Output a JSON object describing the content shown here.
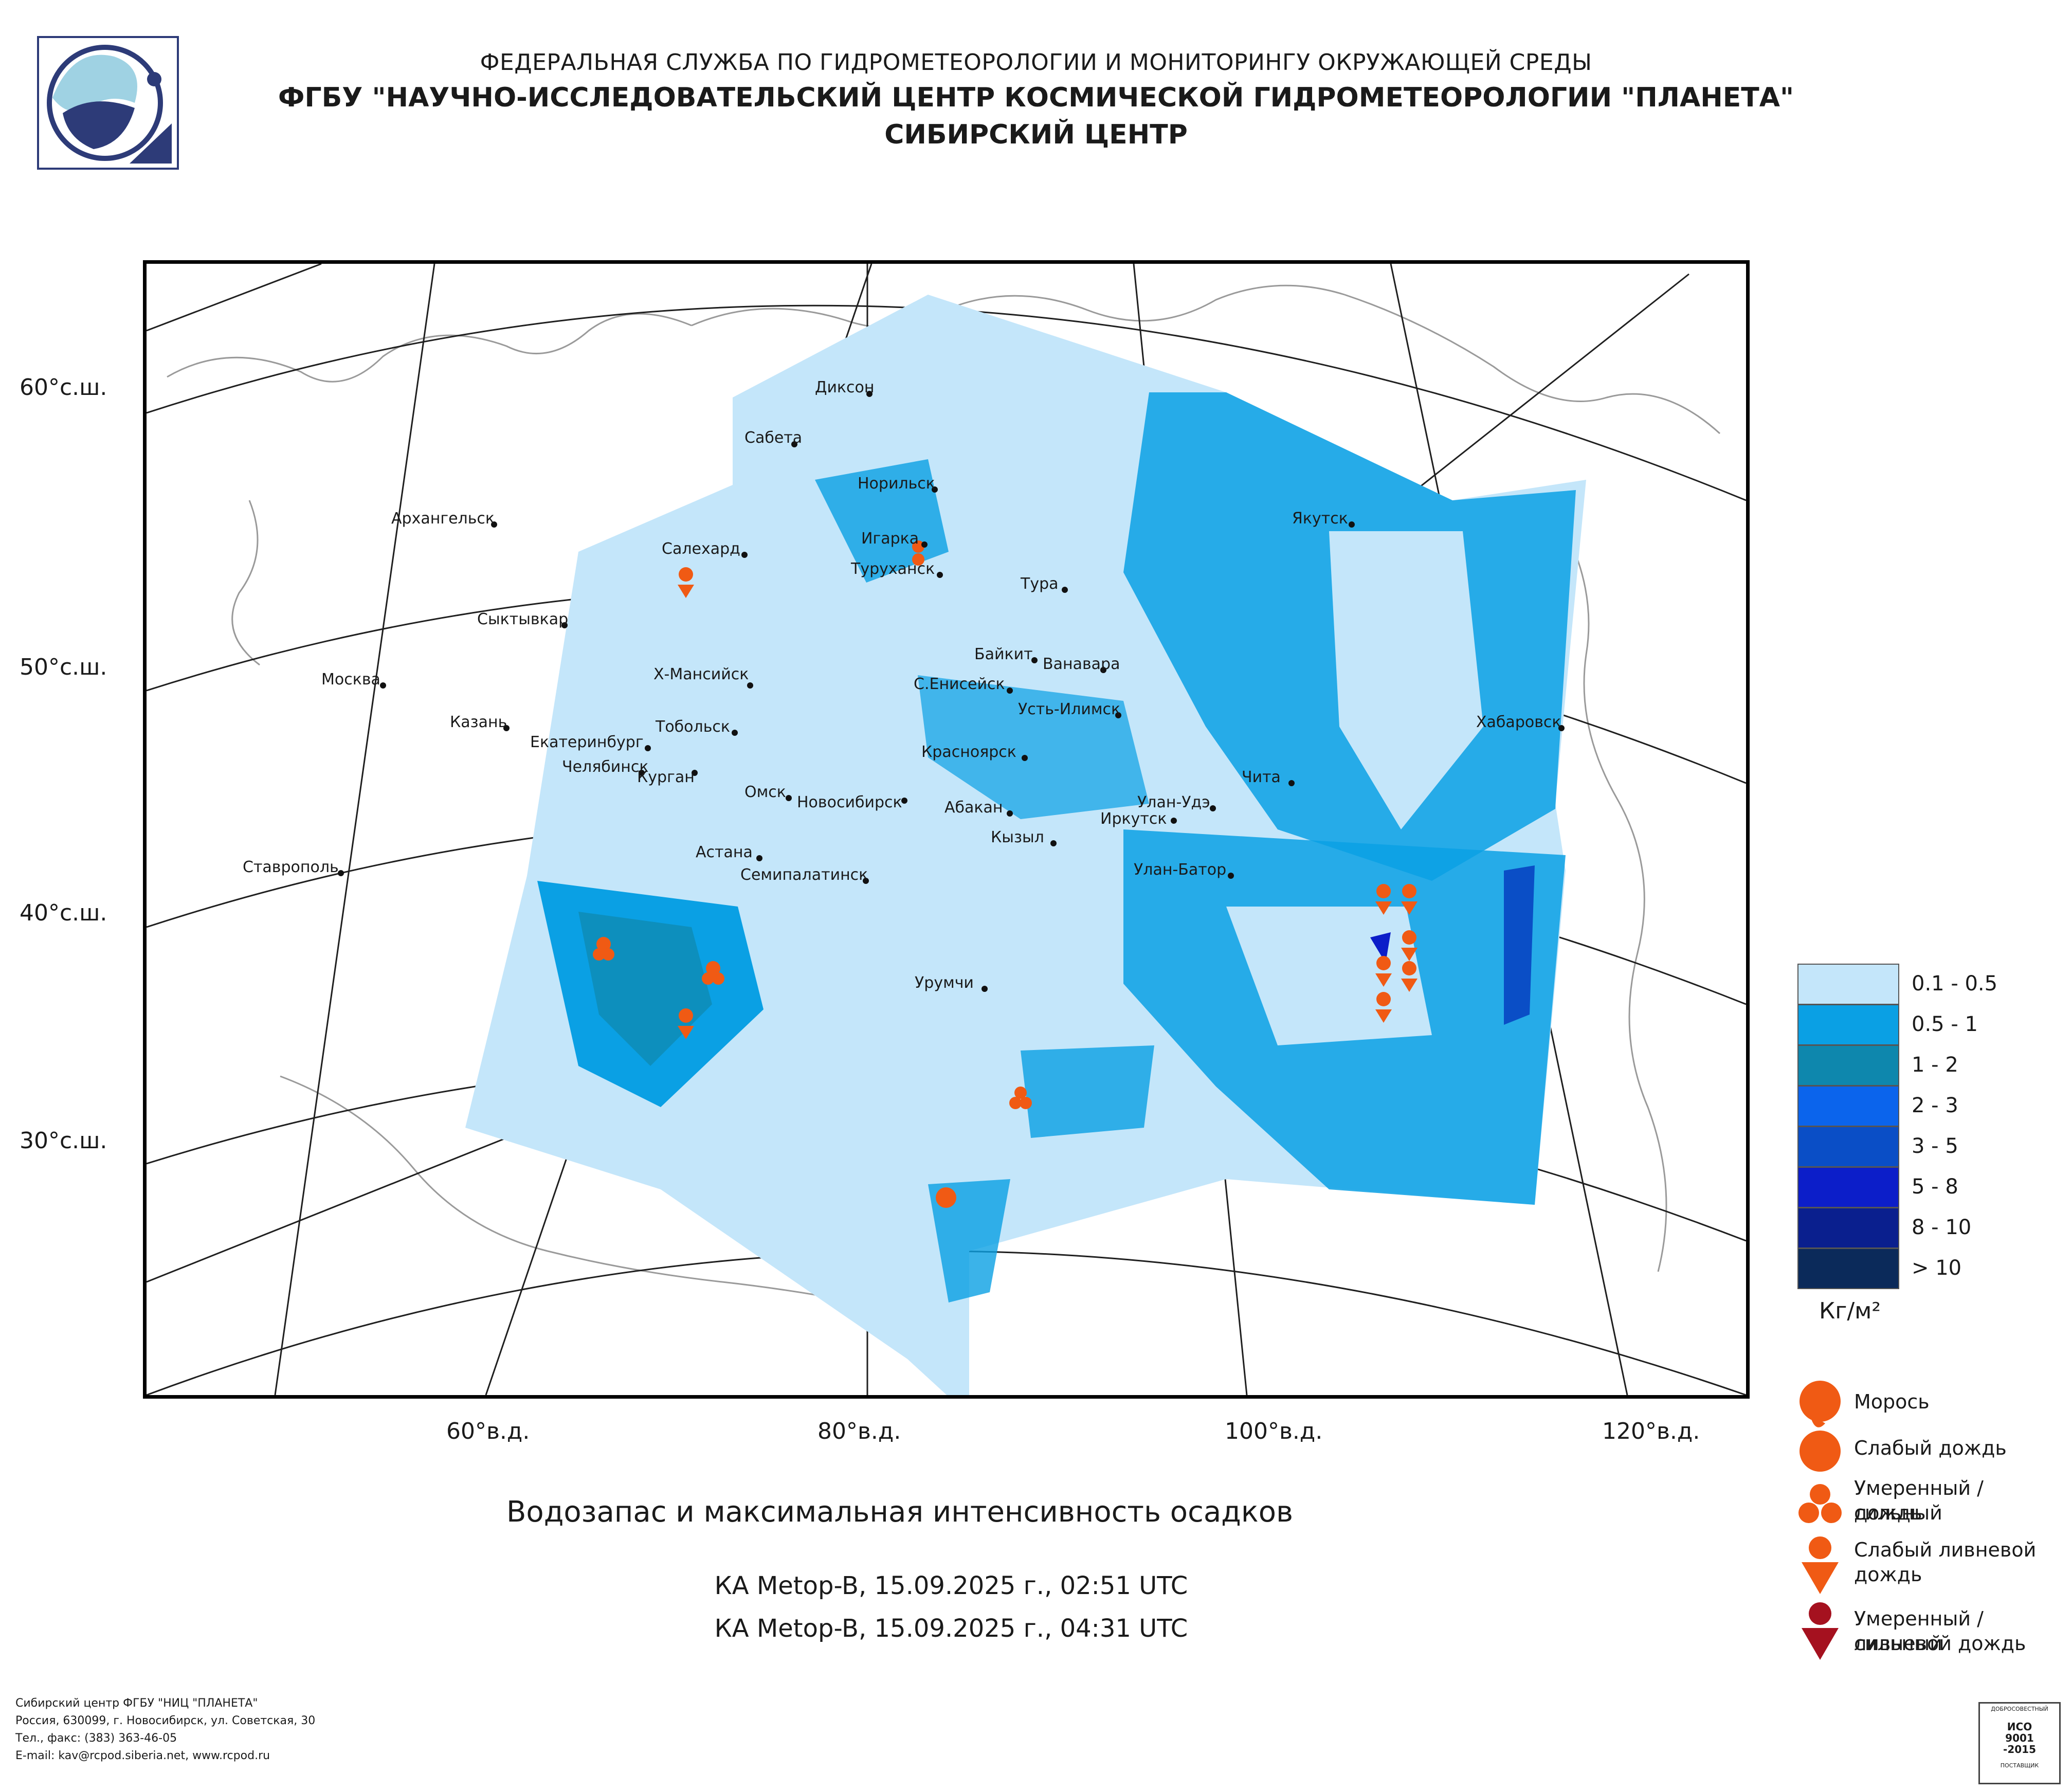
{
  "header": {
    "line1": "ФЕДЕРАЛЬНАЯ СЛУЖБА ПО ГИДРОМЕТЕОРОЛОГИИ И МОНИТОРИНГУ ОКРУЖАЮЩЕЙ СРЕДЫ",
    "line2": "ФГБУ \"НАУЧНО-ИССЛЕДОВАТЕЛЬСКИЙ ЦЕНТР КОСМИЧЕСКОЙ ГИДРОМЕТЕОРОЛОГИИ \"ПЛАНЕТА\"",
    "line3": "СИБИРСКИЙ ЦЕНТР"
  },
  "map": {
    "lat_labels": [
      "60°с.ш.",
      "50°с.ш.",
      "40°с.ш.",
      "30°с.ш."
    ],
    "lon_labels": [
      "60°в.д.",
      "80°в.д.",
      "100°в.д.",
      "120°в.д."
    ],
    "cities": [
      {
        "name": "Диксон"
      },
      {
        "name": "Сабета"
      },
      {
        "name": "Норильск"
      },
      {
        "name": "Архангельск"
      },
      {
        "name": "Салехард"
      },
      {
        "name": "Игарка"
      },
      {
        "name": "Туруханск"
      },
      {
        "name": "Тура"
      },
      {
        "name": "Якутск"
      },
      {
        "name": "Сыктывкар"
      },
      {
        "name": "Байкит"
      },
      {
        "name": "Ванавара"
      },
      {
        "name": "Москва"
      },
      {
        "name": "Х-Мансийск"
      },
      {
        "name": "С.Енисейск"
      },
      {
        "name": "Усть-Илимск"
      },
      {
        "name": "Хабаровск"
      },
      {
        "name": "Казань"
      },
      {
        "name": "Тобольск"
      },
      {
        "name": "Екатеринбург"
      },
      {
        "name": "Красноярск"
      },
      {
        "name": "Челябинск"
      },
      {
        "name": "Курган"
      },
      {
        "name": "Чита"
      },
      {
        "name": "Омск"
      },
      {
        "name": "Новосибирск"
      },
      {
        "name": "Абакан"
      },
      {
        "name": "Улан-Удэ"
      },
      {
        "name": "Иркутск"
      },
      {
        "name": "Кызыл"
      },
      {
        "name": "Астана"
      },
      {
        "name": "Ставрополь"
      },
      {
        "name": "Улан-Батор"
      },
      {
        "name": "Семипалатинск"
      },
      {
        "name": "Урумчи"
      }
    ]
  },
  "title": "Водозапас и максимальная интенсивность осадков",
  "passes": [
    "КА Metop-B, 15.09.2025 г., 02:51 UTC",
    "КА Metop-B, 15.09.2025 г., 04:31 UTC"
  ],
  "legend": {
    "classes": [
      {
        "label": "0.1 - 0.5",
        "color": "#c4e6fa"
      },
      {
        "label": "0.5 - 1",
        "color": "#0aa0e4"
      },
      {
        "label": "1 - 2",
        "color": "#0e87ad"
      },
      {
        "label": "2 - 3",
        "color": "#0b64ec"
      },
      {
        "label": "3 - 5",
        "color": "#0a4ec6"
      },
      {
        "label": "5 - 8",
        "color": "#0c1ec9"
      },
      {
        "label": "8 - 10",
        "color": "#0a1f8e"
      },
      {
        "label": "> 10",
        "color": "#0b2a5a"
      }
    ],
    "unit": "Кг/м²",
    "symbols": [
      {
        "label1": "Морось",
        "label2": "",
        "color": "#f05a14"
      },
      {
        "label1": "Слабый дождь",
        "label2": "",
        "color": "#f05a14"
      },
      {
        "label1": "Умеренный / сильный",
        "label2": "дождь",
        "color": "#f05a14"
      },
      {
        "label1": "Слабый ливневой",
        "label2": "дождь",
        "color": "#f05a14"
      },
      {
        "label1": "Умеренный / сильный",
        "label2": "ливневой дождь",
        "color": "#a5111f"
      }
    ]
  },
  "footer": {
    "l1": "Сибирский центр ФГБУ \"НИЦ \"ПЛАНЕТА\"",
    "l2": "Россия, 630099, г. Новосибирск, ул. Советская, 30",
    "l3": "Тел., факс: (383) 363-46-05",
    "l4": "E-mail: kav@rcpod.siberia.net, www.rcpod.ru"
  },
  "iso_badge": {
    "top": "ДОБРОСОВЕСТНЫЙ",
    "l1": "ИСО",
    "l2": "9001",
    "l3": "-2015",
    "bottom": "ПОСТАВЩИК"
  }
}
